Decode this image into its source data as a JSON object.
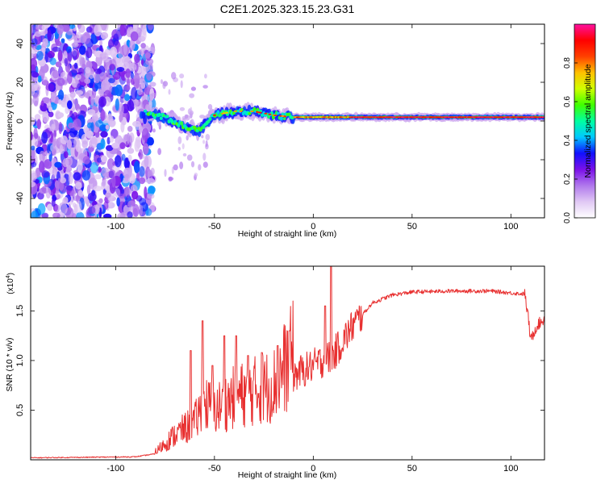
{
  "title": "C2E1.2025.323.15.23.G31",
  "chart_data": [
    {
      "type": "heatmap",
      "name": "spectrogram",
      "xlabel": "Height of straight line (km)",
      "ylabel": "Frequency (Hz)",
      "xlim": [
        -143,
        117
      ],
      "ylim": [
        -50,
        50
      ],
      "x_ticks": [
        -100,
        -50,
        0,
        50,
        100
      ],
      "y_ticks": [
        -40,
        -20,
        0,
        20,
        40
      ],
      "x_tick_labels": [
        "-100",
        "-50",
        "0",
        "50",
        "100"
      ],
      "y_tick_labels": [
        "-40",
        "-20",
        "0",
        "20",
        "40"
      ],
      "colorbar": {
        "label": "Normalized spectral amplitude",
        "range": [
          0,
          1
        ],
        "ticks": [
          0.0,
          0.2,
          0.4,
          0.6,
          0.8
        ],
        "tick_labels": [
          "0.0",
          "0.2",
          "0.4",
          "0.6",
          "0.8"
        ],
        "colors": [
          "#ffffff",
          "#e0c8f4",
          "#b078ec",
          "#7a10e8",
          "#1010ff",
          "#00c8ff",
          "#00ffa0",
          "#40ff00",
          "#d0ff00",
          "#ffc000",
          "#ff4000",
          "#ff0000",
          "#ff10a0"
        ]
      },
      "ridge": [
        {
          "x": -85,
          "freq": 4
        },
        {
          "x": -75,
          "freq": 2
        },
        {
          "x": -65,
          "freq": -3
        },
        {
          "x": -58,
          "freq": -5
        },
        {
          "x": -50,
          "freq": 3
        },
        {
          "x": -40,
          "freq": 5
        },
        {
          "x": -30,
          "freq": 5
        },
        {
          "x": -20,
          "freq": 3
        },
        {
          "x": -10,
          "freq": 2
        },
        {
          "x": 0,
          "freq": 2
        },
        {
          "x": 20,
          "freq": 2
        },
        {
          "x": 50,
          "freq": 2
        },
        {
          "x": 80,
          "freq": 2
        },
        {
          "x": 100,
          "freq": 2
        },
        {
          "x": 117,
          "freq": 2
        }
      ]
    },
    {
      "type": "line",
      "name": "snr",
      "xlabel": "Height of straight line (km)",
      "ylabel": "SNR (10 * v/v)",
      "multiplier_label": "(x10",
      "multiplier_exp": "4",
      "multiplier_close": ")",
      "xlim": [
        -143,
        117
      ],
      "ylim": [
        0,
        1.95
      ],
      "x_ticks": [
        -100,
        -50,
        0,
        50,
        100
      ],
      "y_ticks": [
        0.5,
        1.0,
        1.5
      ],
      "x_tick_labels": [
        "-100",
        "-50",
        "0",
        "50",
        "100"
      ],
      "y_tick_labels": [
        "0.5",
        "1.0",
        "1.5"
      ],
      "color": "#e83030",
      "series_envelope": [
        {
          "x": -143,
          "y": 0.02
        },
        {
          "x": -90,
          "y": 0.03
        },
        {
          "x": -80,
          "y": 0.06
        },
        {
          "x": -70,
          "y": 0.2
        },
        {
          "x": -60,
          "y": 0.3
        },
        {
          "x": -55,
          "y": 0.45
        },
        {
          "x": -50,
          "y": 0.4
        },
        {
          "x": -40,
          "y": 0.5
        },
        {
          "x": -30,
          "y": 0.55
        },
        {
          "x": -20,
          "y": 0.6
        },
        {
          "x": -10,
          "y": 0.85
        },
        {
          "x": 0,
          "y": 0.95
        },
        {
          "x": 10,
          "y": 1.05
        },
        {
          "x": 20,
          "y": 1.35
        },
        {
          "x": 30,
          "y": 1.58
        },
        {
          "x": 40,
          "y": 1.66
        },
        {
          "x": 50,
          "y": 1.69
        },
        {
          "x": 70,
          "y": 1.7
        },
        {
          "x": 90,
          "y": 1.7
        },
        {
          "x": 100,
          "y": 1.68
        },
        {
          "x": 107,
          "y": 1.67
        },
        {
          "x": 109,
          "y": 1.4
        },
        {
          "x": 110,
          "y": 1.2
        },
        {
          "x": 113,
          "y": 1.35
        },
        {
          "x": 117,
          "y": 1.42
        }
      ],
      "spikes": [
        {
          "x": -62,
          "y": 1.1
        },
        {
          "x": -56,
          "y": 1.4
        },
        {
          "x": -51,
          "y": 0.95
        },
        {
          "x": -45,
          "y": 1.25
        },
        {
          "x": -39,
          "y": 1.25
        },
        {
          "x": -33,
          "y": 1.05
        },
        {
          "x": -26,
          "y": 1.08
        },
        {
          "x": -18,
          "y": 1.15
        },
        {
          "x": -12,
          "y": 1.3
        },
        {
          "x": 6,
          "y": 1.55
        },
        {
          "x": 9,
          "y": 1.95
        }
      ]
    }
  ]
}
